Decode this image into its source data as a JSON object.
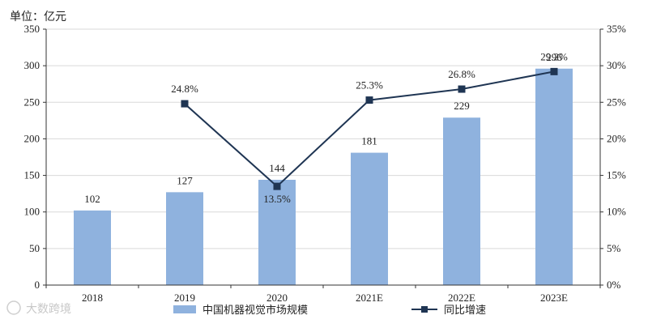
{
  "chart_data": {
    "type": "bar",
    "unit_label": "单位：亿元",
    "categories": [
      "2018",
      "2019",
      "2020",
      "2021E",
      "2022E",
      "2023E"
    ],
    "series": [
      {
        "name": "中国机器视觉市场规模",
        "type": "bar",
        "axis": "left",
        "color": "#8fb2de",
        "values": [
          102,
          127,
          144,
          181,
          229,
          296
        ],
        "labels": [
          "102",
          "127",
          "144",
          "181",
          "229",
          "296"
        ]
      },
      {
        "name": "同比增速",
        "type": "line",
        "axis": "right",
        "color": "#1f3553",
        "values": [
          null,
          24.8,
          13.5,
          25.3,
          26.8,
          29.2
        ],
        "labels": [
          "",
          "24.8%",
          "13.5%",
          "25.3%",
          "26.8%",
          "29.2%"
        ]
      }
    ],
    "y_left": {
      "min": 0,
      "max": 350,
      "ticks": [
        "0",
        "50",
        "100",
        "150",
        "200",
        "250",
        "300",
        "350"
      ]
    },
    "y_right": {
      "min": 0,
      "max": 35,
      "ticks": [
        "0%",
        "5%",
        "10%",
        "15%",
        "20%",
        "25%",
        "30%",
        "35%"
      ]
    },
    "grid": true,
    "legend": "bottom-center"
  },
  "watermark": {
    "text": "大数跨境"
  }
}
